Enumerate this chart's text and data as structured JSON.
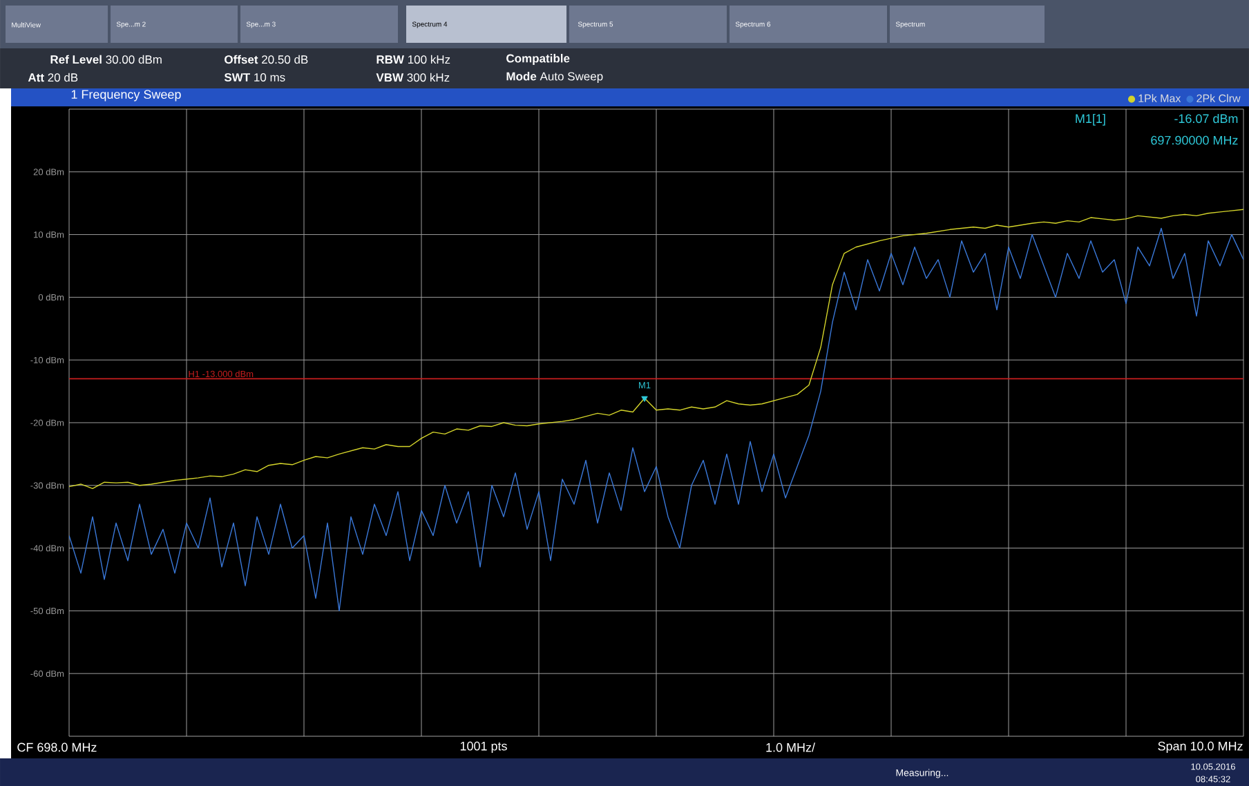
{
  "chart_data": {
    "type": "line",
    "title": "1 Frequency Sweep",
    "categories": [
      null,
      null,
      null,
      null,
      null,
      null,
      null,
      null,
      null,
      null,
      null,
      null,
      null,
      null,
      null,
      null,
      null,
      null,
      null,
      null,
      null,
      null,
      null,
      null,
      null,
      null,
      null,
      null,
      null,
      null,
      null,
      null,
      null,
      null,
      null,
      null,
      null,
      null,
      null,
      null,
      null,
      null,
      null,
      null,
      null,
      null,
      null,
      null,
      null,
      null,
      null,
      null,
      null,
      null,
      null,
      null,
      null,
      null,
      null,
      null,
      null,
      null,
      null,
      null,
      null,
      null,
      null,
      null,
      null,
      null,
      null,
      null,
      null,
      null,
      null,
      null,
      null,
      null,
      null,
      null,
      null,
      null,
      null,
      null,
      null,
      null,
      null,
      null,
      null,
      null,
      null,
      null,
      null,
      null,
      null,
      null,
      null,
      null,
      null,
      null,
      null
    ],
    "ylim": [
      -70,
      30
    ],
    "yticks": [
      {
        "value": -60,
        "label": "-60 dBm"
      },
      {
        "value": -50,
        "label": "-50 dBm"
      },
      {
        "value": -40,
        "label": "-40 dBm"
      },
      {
        "value": -30,
        "label": "-30 dBm"
      },
      {
        "value": -20,
        "label": "-20 dBm"
      },
      {
        "value": -10,
        "label": "-10 dBm"
      },
      {
        "value": 0,
        "label": "0 dBm"
      },
      {
        "value": 10,
        "label": "10 dBm"
      },
      {
        "value": 20,
        "label": "20 dBm"
      }
    ],
    "grid": true,
    "legend": "top right",
    "line_style": "solid",
    "marker": "none",
    "series": [
      {
        "name": "1Pk Max",
        "color": "#d4d42a",
        "values": [
          -30.2,
          -29.8,
          -30.5,
          -29.5,
          -29.6,
          -29.5,
          -30,
          -29.8,
          -29.5,
          -29.2,
          -29,
          -28.8,
          -28.5,
          -28.6,
          -28.2,
          -27.5,
          -27.8,
          -26.8,
          -26.5,
          -26.7,
          -26,
          -25.4,
          -25.6,
          -25,
          -24.5,
          -24,
          -24.2,
          -23.5,
          -23.8,
          -23.8,
          -22.5,
          -21.5,
          -21.8,
          -21,
          -21.2,
          -20.5,
          -20.6,
          -20,
          -20.4,
          -20.5,
          -20.2,
          -20,
          -19.8,
          -19.5,
          -19,
          -18.5,
          -18.8,
          -18,
          -18.3,
          -16.1,
          -18,
          -17.8,
          -18,
          -17.5,
          -17.8,
          -17.5,
          -16.5,
          -17,
          -17.2,
          -17,
          -16.5,
          -16,
          -15.5,
          -14,
          -8,
          2,
          7,
          8,
          8.5,
          9,
          9.4,
          9.8,
          10,
          10.2,
          10.5,
          10.8,
          11,
          11.2,
          11,
          11.5,
          11.2,
          11.5,
          11.8,
          12,
          11.8,
          12.2,
          12,
          12.7,
          12.5,
          12.3,
          12.5,
          13,
          12.8,
          12.6,
          13,
          13.2,
          13,
          13.4,
          13.6,
          13.8,
          14
        ]
      },
      {
        "name": "2Pk Clrw",
        "color": "#3a78d8",
        "values": [
          -38,
          -44,
          -35,
          -45,
          -36,
          -42,
          -33,
          -41,
          -37,
          -44,
          -36,
          -40,
          -32,
          -43,
          -36,
          -46,
          -35,
          -41,
          -33,
          -40,
          -38,
          -48,
          -36,
          -50,
          -35,
          -41,
          -33,
          -38,
          -31,
          -42,
          -34,
          -38,
          -30,
          -36,
          -31,
          -43,
          -30,
          -35,
          -28,
          -37,
          -31,
          -42,
          -29,
          -33,
          -26,
          -36,
          -28,
          -34,
          -24,
          -31,
          -27,
          -35,
          -40,
          -30,
          -26,
          -33,
          -25,
          -33,
          -23,
          -31,
          -25,
          -32,
          -27,
          -22,
          -15,
          -4,
          4,
          -2,
          6,
          1,
          7,
          2,
          8,
          3,
          6,
          0,
          9,
          4,
          7,
          -2,
          8,
          3,
          10,
          5,
          0,
          7,
          3,
          9,
          4,
          6,
          -1,
          8,
          5,
          11,
          3,
          7,
          -3,
          9,
          5,
          10,
          6
        ]
      }
    ],
    "ref_lines": [
      {
        "axis": "y",
        "value": -13,
        "label": "H1 -13.000 dBm",
        "color": "#c81e1e"
      }
    ],
    "annotations": [
      {
        "text": "M1",
        "y": -16.1
      },
      "M1[1]",
      "-16.07 dBm",
      "697.90000 MHz",
      "MultiView",
      "Spe...m 2",
      "Spe...m 3",
      "Spectrum 4",
      "Spectrum 5",
      "Spectrum 6",
      "Spectrum",
      "**Ref Level** 30.00 dBm",
      "**Offset** 20.50 dB",
      "**RBW** 100 kHz",
      "**Compatible**",
      "**Att** 20 dB",
      "**SWT** 10 ms",
      "**VBW** 300 kHz",
      "**Mode** Auto Sweep",
      "CF 698.0 MHz",
      "1001 pts",
      "1.0 MHz/",
      "Span 10.0 MHz",
      "Measuring...",
      "10.05.2016",
      "08:45:32"
    ]
  }
}
